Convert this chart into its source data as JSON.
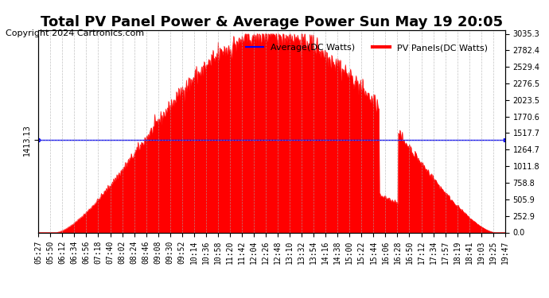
{
  "title": "Total PV Panel Power & Average Power Sun May 19 20:05",
  "copyright": "Copyright 2024 Cartronics.com",
  "legend_avg": "Average(DC Watts)",
  "legend_pv": "PV Panels(DC Watts)",
  "avg_value": 1413.13,
  "y_max": 3035.3,
  "y_min": 0.0,
  "y_ticks_right": [
    0.0,
    252.9,
    505.9,
    758.8,
    1011.8,
    1264.7,
    1517.7,
    1770.6,
    2023.5,
    2276.5,
    2529.4,
    2782.4,
    3035.3
  ],
  "pv_color": "#FF0000",
  "avg_color": "#0000FF",
  "bg_color": "#FFFFFF",
  "grid_color": "#AAAAAA",
  "title_fontsize": 13,
  "copyright_fontsize": 8,
  "tick_fontsize": 7,
  "x_start": "05:27",
  "x_end": "19:47",
  "x_tick_labels": [
    "05:27",
    "05:50",
    "06:12",
    "06:34",
    "06:56",
    "07:18",
    "07:40",
    "08:02",
    "08:24",
    "08:46",
    "09:08",
    "09:30",
    "09:52",
    "10:14",
    "10:36",
    "10:58",
    "11:20",
    "11:42",
    "12:04",
    "12:26",
    "12:48",
    "13:10",
    "13:32",
    "13:54",
    "14:16",
    "14:38",
    "15:00",
    "15:22",
    "15:44",
    "16:06",
    "16:28",
    "16:50",
    "17:12",
    "17:34",
    "17:57",
    "18:19",
    "18:41",
    "19:03",
    "19:25",
    "19:47"
  ]
}
